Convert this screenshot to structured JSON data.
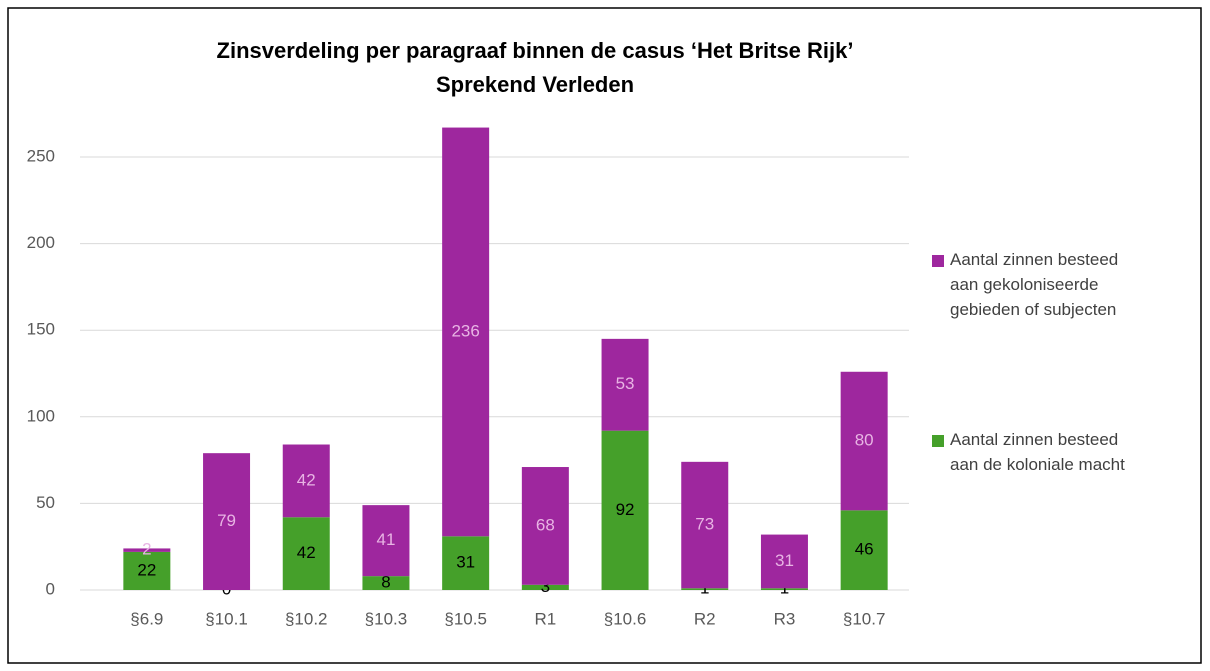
{
  "chart_data": {
    "type": "bar",
    "stacked": true,
    "title": "Zinsverdeling per paragraaf binnen de casus ‘Het Britse Rijk’",
    "subtitle": "Sprekend Verleden",
    "categories": [
      "§6.9",
      "§10.1",
      "§10.2",
      "§10.3",
      "§10.5",
      "R1",
      "§10.6",
      "R2",
      "R3",
      "§10.7"
    ],
    "series": [
      {
        "name": "Aantal zinnen besteed aan de koloniale macht",
        "color": "#45a02a",
        "label_color": "#000000",
        "values": [
          22,
          0,
          42,
          8,
          31,
          3,
          92,
          1,
          1,
          46
        ]
      },
      {
        "name": "Aantal zinnen besteed aan gekoloniseerde gebieden of subjecten",
        "color": "#9e279e",
        "label_color": "#e8b4e4",
        "values": [
          2,
          79,
          42,
          41,
          236,
          68,
          53,
          73,
          31,
          80
        ]
      }
    ],
    "ylim": [
      0,
      270
    ],
    "yticks": [
      0,
      50,
      100,
      150,
      200,
      250
    ],
    "grid": true,
    "legend": "right"
  }
}
